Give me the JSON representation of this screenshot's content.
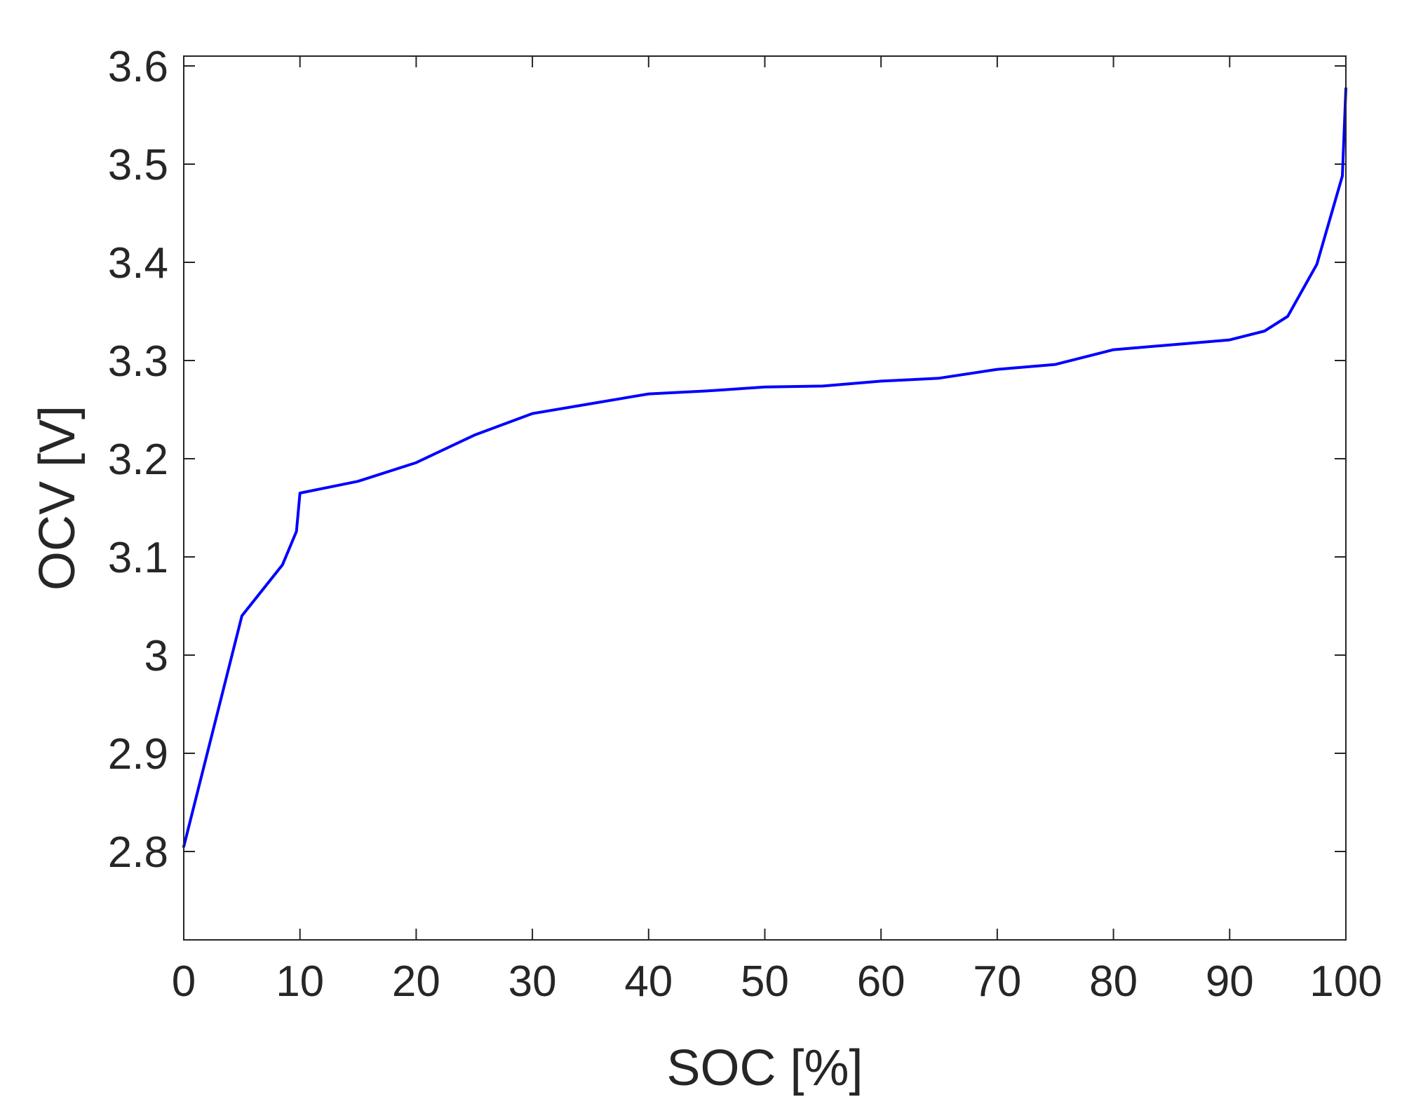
{
  "chart_data": {
    "type": "line",
    "title": "",
    "xlabel": "SOC [%]",
    "ylabel": "OCV [V]",
    "xlim": [
      0,
      100
    ],
    "ylim": [
      2.71,
      3.61
    ],
    "xticks": [
      0,
      10,
      20,
      30,
      40,
      50,
      60,
      70,
      80,
      90,
      100
    ],
    "yticks": [
      2.8,
      2.9,
      3.0,
      3.1,
      3.2,
      3.3,
      3.4,
      3.5,
      3.6
    ],
    "xtick_labels": [
      "0",
      "10",
      "20",
      "30",
      "40",
      "50",
      "60",
      "70",
      "80",
      "90",
      "100"
    ],
    "ytick_labels": [
      "2.8",
      "2.9",
      "3",
      "3.1",
      "3.2",
      "3.3",
      "3.4",
      "3.5",
      "3.6"
    ],
    "grid": false,
    "series": [
      {
        "color": "#0000ff",
        "x": [
          0,
          5,
          8.5,
          9.7,
          10,
          15,
          20,
          25,
          30,
          35,
          40,
          45,
          50,
          55,
          60,
          65,
          70,
          75,
          80,
          85,
          90,
          93,
          95,
          97.5,
          99.7,
          100
        ],
        "y": [
          2.805,
          3.04,
          3.092,
          3.126,
          3.165,
          3.177,
          3.196,
          3.224,
          3.246,
          3.256,
          3.266,
          3.269,
          3.273,
          3.274,
          3.279,
          3.282,
          3.291,
          3.296,
          3.311,
          3.316,
          3.321,
          3.33,
          3.345,
          3.398,
          3.488,
          3.577
        ]
      }
    ]
  }
}
